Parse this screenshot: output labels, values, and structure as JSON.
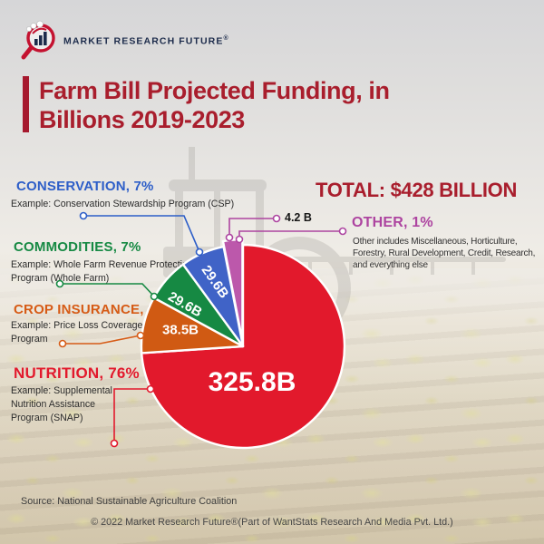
{
  "brand": {
    "name": "MARKET RESEARCH FUTURE",
    "reg_mark": "®"
  },
  "title": {
    "line1": "Farm Bill Projected Funding, in",
    "line2": "Billions 2019-2023"
  },
  "summary": {
    "total": "TOTAL: $428 BILLION"
  },
  "callouts": {
    "conservation": {
      "title": "CONSERVATION, 7%",
      "example": "Example: Conservation Stewardship Program (CSP)"
    },
    "commodities": {
      "title": "COMMODITIES, 7%",
      "example": "Example: Whole Farm Revenue Protection Program (Whole Farm)"
    },
    "crop_insurance": {
      "title": "CROP INSURANCE, 9%",
      "example": "Example: Price Loss Coverage Program"
    },
    "nutrition": {
      "title": "NUTRITION, 76%",
      "example_lines": [
        "Example: Supplemental",
        "Nutrition Assistance",
        "Program (SNAP)"
      ]
    },
    "other": {
      "title": "OTHER, 1%",
      "description_lines": [
        "Other includes Miscellaneous, Horticulture,",
        "Forestry, Rural Development, Credit, Research,",
        "and everything else"
      ]
    }
  },
  "chart_data": {
    "type": "pie",
    "title": "Farm Bill Projected Funding, in Billions 2019-2023",
    "total_label": "TOTAL: $428 BILLION",
    "total_billion": 428,
    "unit": "USD billions",
    "legend_position": "callouts-around-pie",
    "slices": [
      {
        "name": "Nutrition",
        "percent": 76,
        "value_billion": 325.8,
        "value_label": "325.8B",
        "color": "#E2192C"
      },
      {
        "name": "Crop Insurance",
        "percent": 9,
        "value_billion": 38.5,
        "value_label": "38.5B",
        "color": "#D05A13"
      },
      {
        "name": "Commodities",
        "percent": 7,
        "value_billion": 29.6,
        "value_label": "29.6B",
        "color": "#168943"
      },
      {
        "name": "Conservation",
        "percent": 7,
        "value_billion": 29.6,
        "value_label": "29.6B",
        "color": "#4063C7"
      },
      {
        "name": "Other",
        "percent": 1,
        "value_billion": 4.2,
        "value_label": "4.2 B",
        "color": "#BC58AB"
      }
    ]
  },
  "colors": {
    "title_red": "#A91E2D",
    "conservation_blue": "#2D5EC8",
    "commodities_green": "#168943",
    "crop_orange": "#D65B16",
    "nutrition_red": "#E2192C",
    "other_magenta": "#AD44A0"
  },
  "footer": {
    "source": "Source: National Sustainable Agriculture Coalition",
    "copyright": "© 2022 Market Research Future®(Part of WantStats Research And Media Pvt. Ltd.)"
  }
}
